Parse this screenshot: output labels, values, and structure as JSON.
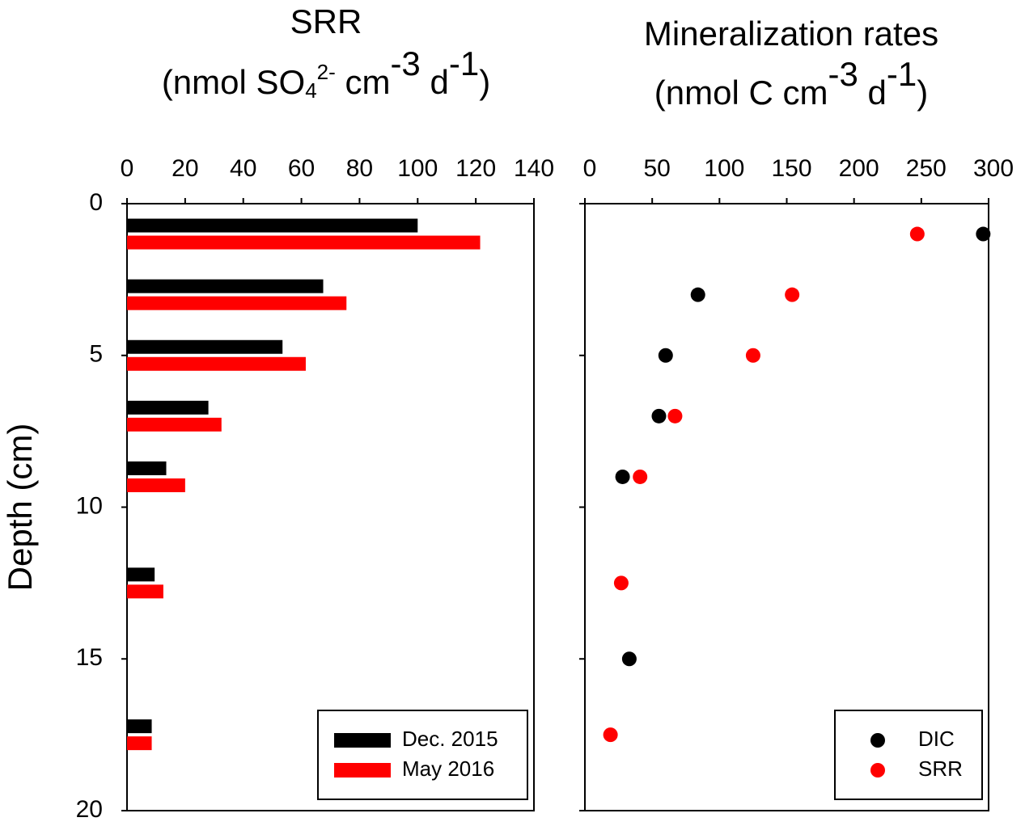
{
  "chart_data": [
    {
      "type": "hbar",
      "title": "SRR",
      "subtitle": [
        {
          "text": "(nmol SO"
        },
        {
          "text": "4",
          "shift": "sub"
        },
        {
          "text": "2-",
          "shift": "super"
        },
        {
          "text": " cm"
        },
        {
          "text": "-3",
          "shift": "super"
        },
        {
          "text": " d"
        },
        {
          "text": "-1",
          "shift": "super"
        },
        {
          "text": ")"
        }
      ],
      "ylabel": "Depth (cm)",
      "y": [
        1,
        3,
        5,
        7,
        9,
        12.5,
        17.5
      ],
      "series": [
        {
          "name": "Dec. 2015",
          "color": "#000000",
          "values": [
            100,
            67.5,
            53.5,
            28,
            13.5,
            9.5,
            8.5
          ]
        },
        {
          "name": "May 2016",
          "color": "#ff0000",
          "values": [
            121.5,
            75.5,
            61.5,
            32.5,
            20,
            12.5,
            8.5
          ]
        }
      ],
      "xlim": [
        0,
        140
      ],
      "xticks": [
        0,
        20,
        40,
        60,
        80,
        100,
        120,
        140
      ],
      "ylim": [
        0,
        20
      ],
      "yticks": [
        0,
        5,
        10,
        15,
        20
      ],
      "y_inverted": true,
      "legend": "lower right"
    },
    {
      "type": "scatter",
      "title": "Mineralization rates",
      "subtitle": [
        {
          "text": "(nmol C cm"
        },
        {
          "text": "-3",
          "shift": "super"
        },
        {
          "text": " d"
        },
        {
          "text": "-1",
          "shift": "super"
        },
        {
          "text": ")"
        }
      ],
      "series": [
        {
          "name": "DIC",
          "color": "#000000",
          "x": [
            296,
            84,
            60,
            55,
            28,
            33
          ],
          "y": [
            1,
            3,
            5,
            7,
            9,
            15
          ]
        },
        {
          "name": "SRR",
          "color": "#ff0000",
          "x": [
            247,
            154,
            125,
            67,
            41,
            27,
            19
          ],
          "y": [
            1,
            3,
            5,
            7,
            9,
            12.5,
            17.5
          ]
        }
      ],
      "xlim": [
        0,
        300
      ],
      "xticks": [
        0,
        50,
        100,
        150,
        200,
        250,
        300
      ],
      "ylim": [
        0,
        20
      ],
      "yticks": [
        0,
        5,
        10,
        15,
        20
      ],
      "ytick_labels": false,
      "y_inverted": true,
      "legend": "lower right"
    }
  ]
}
